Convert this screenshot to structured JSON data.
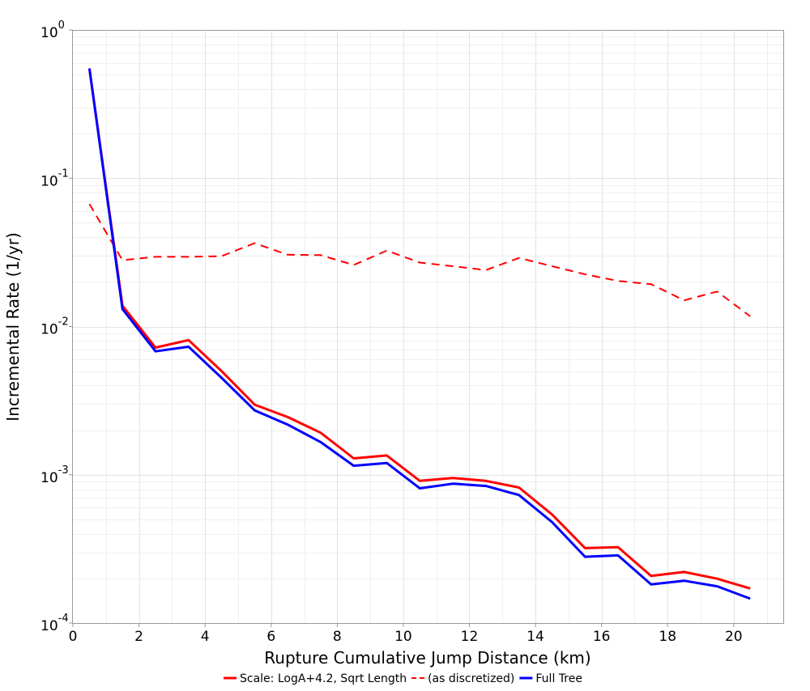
{
  "chart_data": {
    "type": "line",
    "xlabel": "Rupture Cumulative Jump Distance (km)",
    "ylabel": "Incremental Rate (1/yr)",
    "xlim": [
      0,
      21.5
    ],
    "ylim": [
      0.0001,
      1
    ],
    "y_scale": "log",
    "grid": true,
    "legend_position": "bottom",
    "x_ticks": [
      0,
      2,
      4,
      6,
      8,
      10,
      12,
      14,
      16,
      18,
      20
    ],
    "x_tick_labels": [
      "0",
      "2",
      "4",
      "6",
      "8",
      "10",
      "12",
      "14",
      "16",
      "18",
      "20"
    ],
    "y_ticks": [
      {
        "value": 1,
        "base": "10",
        "exp": "0"
      },
      {
        "value": 0.1,
        "base": "10",
        "exp": "-1"
      },
      {
        "value": 0.01,
        "base": "10",
        "exp": "-2"
      },
      {
        "value": 0.001,
        "base": "10",
        "exp": "-3"
      },
      {
        "value": 0.0001,
        "base": "10",
        "exp": "-4"
      }
    ],
    "x": [
      0.5,
      1.5,
      2.5,
      3.5,
      4.5,
      5.5,
      6.5,
      7.5,
      8.5,
      9.5,
      10.5,
      11.5,
      12.5,
      13.5,
      14.5,
      15.5,
      16.5,
      17.5,
      18.5,
      19.5,
      20.5
    ],
    "series": [
      {
        "name": "Scale: LogA+4.2, Sqrt Length",
        "color": "#ff0000",
        "dash": "solid",
        "values": [
          0.55,
          0.0138,
          0.0072,
          0.0081,
          0.005,
          0.00297,
          0.00245,
          0.00192,
          0.00129,
          0.00135,
          0.00091,
          0.00095,
          0.00091,
          0.00082,
          0.00054,
          0.00032,
          0.000325,
          0.000208,
          0.000221,
          0.000199,
          0.000171
        ]
      },
      {
        "name": "(as discretized)",
        "color": "#ff0000",
        "dash": "dashed",
        "values": [
          0.067,
          0.028,
          0.0295,
          0.0295,
          0.0298,
          0.0365,
          0.0305,
          0.0303,
          0.026,
          0.0325,
          0.027,
          0.0255,
          0.024,
          0.029,
          0.0255,
          0.0225,
          0.0203,
          0.0193,
          0.015,
          0.0172,
          0.0117
        ]
      },
      {
        "name": "Full Tree",
        "color": "#0000ff",
        "dash": "solid",
        "values": [
          0.55,
          0.0131,
          0.0068,
          0.0073,
          0.0045,
          0.00272,
          0.00218,
          0.00166,
          0.00115,
          0.0012,
          0.00081,
          0.00087,
          0.00084,
          0.00073,
          0.00048,
          0.00028,
          0.000286,
          0.000182,
          0.000193,
          0.000177,
          0.000146
        ]
      }
    ]
  }
}
